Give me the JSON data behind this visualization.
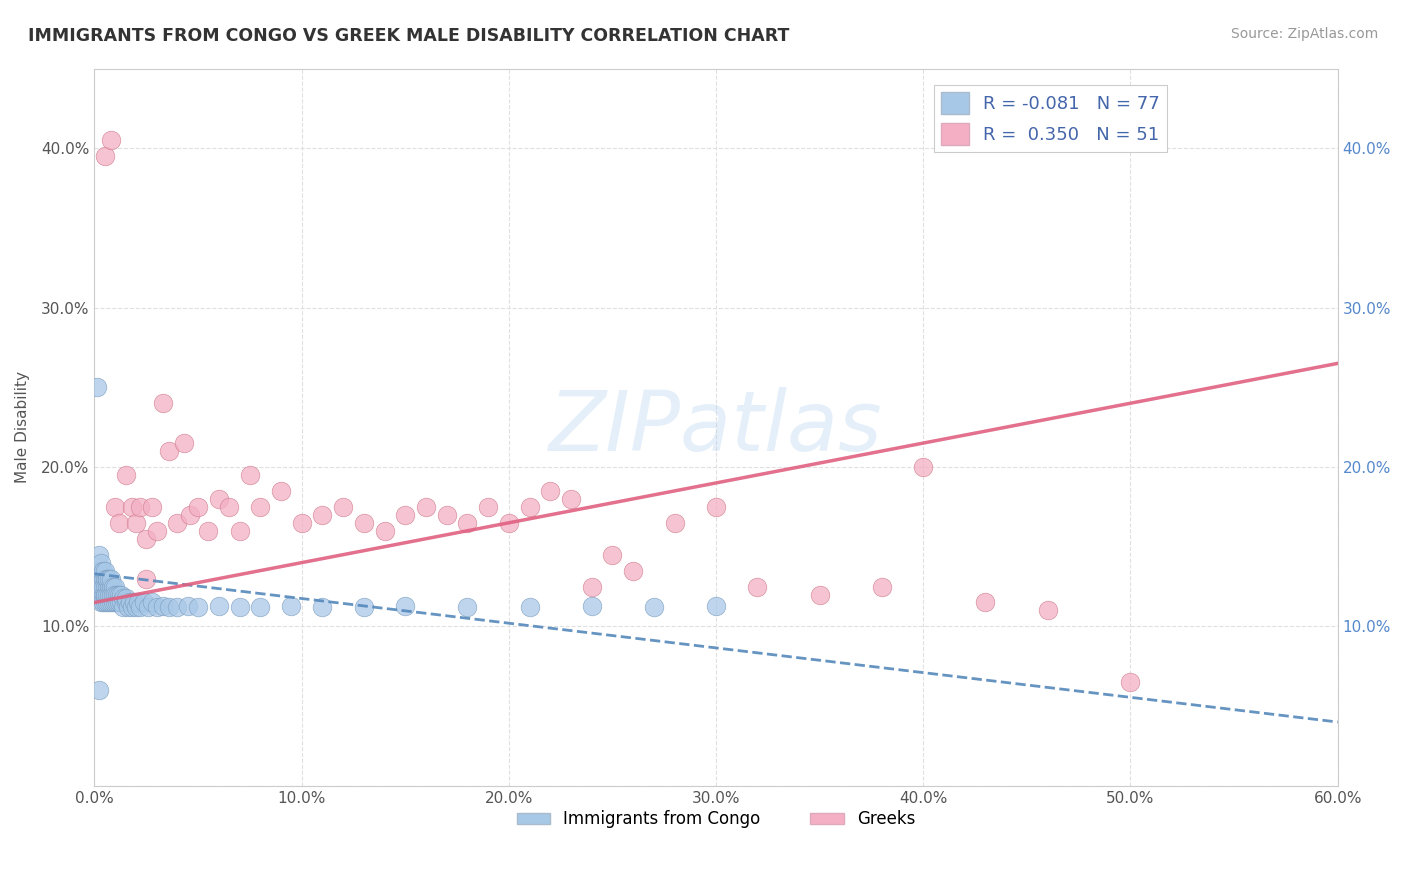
{
  "title": "IMMIGRANTS FROM CONGO VS GREEK MALE DISABILITY CORRELATION CHART",
  "source": "Source: ZipAtlas.com",
  "watermark": "ZIPatlas",
  "ylabel": "Male Disability",
  "series1_label": "Immigrants from Congo",
  "series2_label": "Greeks",
  "series1_R": -0.081,
  "series1_N": 77,
  "series2_R": 0.35,
  "series2_N": 51,
  "series1_color": "#a8c8e8",
  "series2_color": "#f4afc4",
  "series1_line_color": "#5588bb",
  "series2_line_color": "#e06080",
  "series1_line_style": "--",
  "series2_line_style": "-",
  "background_color": "#ffffff",
  "grid_color": "#e0e0e0",
  "xlim": [
    0.0,
    0.6
  ],
  "ylim": [
    0.0,
    0.45
  ],
  "x_ticks": [
    0.0,
    0.1,
    0.2,
    0.3,
    0.4,
    0.5,
    0.6
  ],
  "y_ticks": [
    0.0,
    0.1,
    0.2,
    0.3,
    0.4
  ],
  "series1_x": [
    0.001,
    0.002,
    0.002,
    0.003,
    0.003,
    0.003,
    0.003,
    0.004,
    0.004,
    0.004,
    0.004,
    0.004,
    0.005,
    0.005,
    0.005,
    0.005,
    0.005,
    0.005,
    0.006,
    0.006,
    0.006,
    0.006,
    0.006,
    0.007,
    0.007,
    0.007,
    0.007,
    0.008,
    0.008,
    0.008,
    0.008,
    0.009,
    0.009,
    0.009,
    0.01,
    0.01,
    0.01,
    0.011,
    0.011,
    0.012,
    0.012,
    0.013,
    0.013,
    0.014,
    0.014,
    0.015,
    0.015,
    0.016,
    0.017,
    0.018,
    0.019,
    0.02,
    0.021,
    0.022,
    0.024,
    0.026,
    0.028,
    0.03,
    0.033,
    0.036,
    0.04,
    0.045,
    0.05,
    0.06,
    0.07,
    0.08,
    0.095,
    0.11,
    0.13,
    0.15,
    0.18,
    0.21,
    0.24,
    0.27,
    0.3,
    0.001,
    0.002
  ],
  "series1_y": [
    0.13,
    0.145,
    0.12,
    0.135,
    0.115,
    0.125,
    0.14,
    0.12,
    0.13,
    0.115,
    0.125,
    0.135,
    0.12,
    0.13,
    0.115,
    0.125,
    0.135,
    0.12,
    0.13,
    0.115,
    0.125,
    0.12,
    0.13,
    0.115,
    0.125,
    0.13,
    0.12,
    0.125,
    0.115,
    0.12,
    0.13,
    0.115,
    0.125,
    0.12,
    0.125,
    0.115,
    0.12,
    0.12,
    0.115,
    0.12,
    0.115,
    0.12,
    0.115,
    0.118,
    0.112,
    0.115,
    0.118,
    0.112,
    0.115,
    0.112,
    0.115,
    0.112,
    0.115,
    0.112,
    0.115,
    0.112,
    0.115,
    0.112,
    0.113,
    0.112,
    0.112,
    0.113,
    0.112,
    0.113,
    0.112,
    0.112,
    0.113,
    0.112,
    0.112,
    0.113,
    0.112,
    0.112,
    0.113,
    0.112,
    0.113,
    0.25,
    0.06
  ],
  "series2_x": [
    0.005,
    0.01,
    0.012,
    0.015,
    0.018,
    0.02,
    0.022,
    0.025,
    0.028,
    0.03,
    0.033,
    0.036,
    0.04,
    0.043,
    0.046,
    0.05,
    0.055,
    0.06,
    0.065,
    0.07,
    0.075,
    0.08,
    0.09,
    0.1,
    0.11,
    0.12,
    0.13,
    0.14,
    0.15,
    0.16,
    0.17,
    0.18,
    0.19,
    0.2,
    0.21,
    0.22,
    0.23,
    0.24,
    0.25,
    0.26,
    0.28,
    0.3,
    0.32,
    0.35,
    0.38,
    0.4,
    0.43,
    0.46,
    0.5,
    0.025,
    0.008
  ],
  "series2_y": [
    0.395,
    0.175,
    0.165,
    0.195,
    0.175,
    0.165,
    0.175,
    0.155,
    0.175,
    0.16,
    0.24,
    0.21,
    0.165,
    0.215,
    0.17,
    0.175,
    0.16,
    0.18,
    0.175,
    0.16,
    0.195,
    0.175,
    0.185,
    0.165,
    0.17,
    0.175,
    0.165,
    0.16,
    0.17,
    0.175,
    0.17,
    0.165,
    0.175,
    0.165,
    0.175,
    0.185,
    0.18,
    0.125,
    0.145,
    0.135,
    0.165,
    0.175,
    0.125,
    0.12,
    0.125,
    0.2,
    0.115,
    0.11,
    0.065,
    0.13,
    0.405
  ],
  "series1_line_x": [
    0.0,
    0.6
  ],
  "series1_line_y": [
    0.133,
    0.04
  ],
  "series2_line_x": [
    0.0,
    0.6
  ],
  "series2_line_y": [
    0.115,
    0.265
  ]
}
